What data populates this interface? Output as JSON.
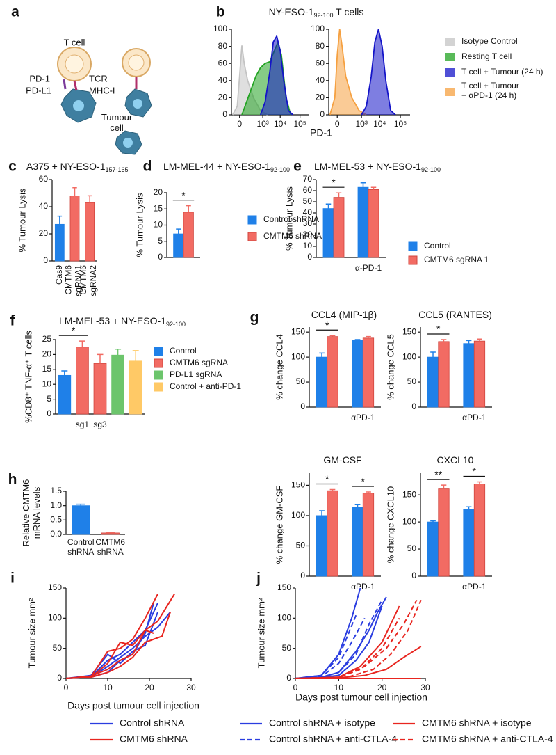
{
  "diagram": {
    "panel_label": "a",
    "labels": [
      "T cell",
      "TCR",
      "MHC-I",
      "PD-1",
      "PD-L1",
      "Tumour\ncell"
    ]
  },
  "chart_data": [
    {
      "type": "density",
      "panel_label": "b",
      "title": "NY-ESO-1",
      "title_sub": "92-100",
      "title_suffix": " T cells",
      "xlabel": "PD-1",
      "xlim": [
        -0.35,
        3.0
      ],
      "xticks": [
        0,
        {
          "value": 1,
          "label": "10³"
        },
        {
          "value": 1.75,
          "label": "10⁴"
        },
        {
          "value": 2.6,
          "label": "10⁵"
        }
      ],
      "ylim": [
        0,
        100
      ],
      "yticks": [
        0,
        20,
        40,
        60,
        80,
        100
      ],
      "series": [
        {
          "name": "Isotype Control",
          "color": "#c4c4c4",
          "x": [
            -0.3,
            -0.1,
            0,
            0.1,
            0.2,
            0.35,
            0.6,
            0.9,
            1.2
          ],
          "values": [
            0,
            10,
            45,
            81,
            60,
            40,
            20,
            5,
            0
          ]
        },
        {
          "name": "Resting T cell",
          "color": "#22a322",
          "x": [
            0.1,
            0.3,
            0.5,
            0.7,
            0.9,
            1.1,
            1.3,
            1.5,
            1.65,
            1.8,
            2.0,
            2.2
          ],
          "values": [
            0,
            15,
            30,
            45,
            55,
            60,
            62,
            75,
            85,
            70,
            20,
            0
          ]
        },
        {
          "name": "T cell + Tumour (24 h)",
          "color": "#1414c8",
          "x": [
            0.9,
            1.1,
            1.3,
            1.45,
            1.6,
            1.75,
            1.9,
            2.1,
            2.3
          ],
          "values": [
            0,
            15,
            50,
            85,
            92,
            75,
            40,
            5,
            0
          ]
        }
      ]
    },
    {
      "type": "density",
      "xlim": [
        -0.35,
        3.0
      ],
      "xticks": [
        0,
        {
          "value": 1,
          "label": "10³"
        },
        {
          "value": 1.75,
          "label": "10⁴"
        },
        {
          "value": 2.6,
          "label": "10⁵"
        }
      ],
      "ylim": [
        0,
        100
      ],
      "yticks": [
        0,
        20,
        40,
        60,
        80,
        100
      ],
      "series": [
        {
          "name": "T cell + Tumour\n+ αPD-1 (24 h)",
          "color": "#f5a040",
          "x": [
            -0.3,
            -0.1,
            0,
            0.1,
            0.2,
            0.35,
            0.6,
            0.9,
            1.2
          ],
          "values": [
            0,
            20,
            70,
            100,
            80,
            45,
            20,
            5,
            0
          ]
        },
        {
          "color": "#1414c8",
          "x": [
            1.0,
            1.2,
            1.4,
            1.55,
            1.7,
            1.85,
            2.0,
            2.2,
            2.4
          ],
          "values": [
            0,
            10,
            45,
            85,
            100,
            80,
            40,
            5,
            0
          ]
        }
      ]
    },
    {
      "type": "bar",
      "panel_label": "c",
      "title": "A375 + NY-ESO-1",
      "title_sub": "157-165",
      "ylabel": "% Tumour Lysis",
      "rotate_labels": true,
      "categories": [
        "Cas9",
        "CMTM6\nsgRNA1",
        "CMTM6\nsgRNA2"
      ],
      "values": [
        27,
        48,
        43
      ],
      "errors": [
        6,
        6,
        5
      ],
      "colors": [
        "#1f80e8",
        "#f26b63",
        "#f26b63"
      ],
      "ylim": [
        0,
        60
      ],
      "yticks": [
        0,
        20,
        40,
        60
      ]
    },
    {
      "type": "bar",
      "panel_label": "d",
      "title": "LM-MEL-44 + NY-ESO-1",
      "title_sub": "92-100",
      "ylabel": "% Tumour Lysis",
      "categories": [
        null
      ],
      "series": [
        {
          "name": "Control shRNA",
          "color": "#1f80e8",
          "values": [
            7.3
          ],
          "errors": [
            1.5
          ]
        },
        {
          "name": "CMTM6 shRNA",
          "color": "#f26b63",
          "values": [
            14
          ],
          "errors": [
            2
          ]
        }
      ],
      "annotations": [
        {
          "text": "*",
          "category": 0
        }
      ],
      "ylim": [
        0,
        20
      ],
      "yticks": [
        0,
        5,
        10,
        15,
        20
      ]
    },
    {
      "type": "bar",
      "panel_label": "e",
      "title": "LM-MEL-53 + NY-ESO-1",
      "title_sub": "92-100",
      "ylabel": "% Tumour Lysis",
      "categories": [
        null,
        "α-PD-1"
      ],
      "series": [
        {
          "name": "Control",
          "color": "#1f80e8",
          "values": [
            44,
            63
          ],
          "errors": [
            4,
            4
          ]
        },
        {
          "name": "CMTM6 sgRNA 1",
          "color": "#f26b63",
          "values": [
            54,
            61
          ],
          "errors": [
            4,
            2
          ]
        }
      ],
      "annotations": [
        {
          "text": "*",
          "category": 0
        }
      ],
      "ylim": [
        0,
        70
      ],
      "yticks": [
        0,
        10,
        20,
        30,
        40,
        50,
        60,
        70
      ]
    },
    {
      "type": "bar",
      "panel_label": "f",
      "title": "LM-MEL-53 + NY-ESO-1",
      "title_sub": "92-100",
      "ylabel": "%CD8⁺ TNF-α⁺ T cells",
      "categories": [
        null,
        "sg1",
        "sg3",
        null,
        null
      ],
      "values": [
        13,
        22.5,
        17,
        19.8,
        17.8
      ],
      "errors": [
        1.5,
        2,
        3,
        2,
        3.5
      ],
      "colors": [
        "#1f80e8",
        "#f26b63",
        "#f26b63",
        "#6cc56c",
        "#ffc966"
      ],
      "legend": [
        {
          "name": "Control",
          "color": "#1f80e8"
        },
        {
          "name": "CMTM6 sgRNA",
          "color": "#f26b63"
        },
        {
          "name": "PD-L1 sgRNA",
          "color": "#6cc56c"
        },
        {
          "name": "Control + anti-PD-1",
          "color": "#ffc966"
        }
      ],
      "annotations": [
        {
          "text": "*",
          "categories": [
            0,
            1
          ]
        }
      ],
      "ylim": [
        0,
        25
      ],
      "yticks": [
        0,
        5,
        10,
        15,
        20,
        25
      ]
    },
    {
      "type": "bar",
      "panel_label": "g",
      "title": "CCL4 (MIP-1β)",
      "ylabel": "% change CCL4",
      "categories": [
        null,
        "αPD-1"
      ],
      "series": [
        {
          "color": "#1f80e8",
          "values": [
            100,
            133
          ],
          "errors": [
            8,
            2
          ]
        },
        {
          "color": "#f26b63",
          "values": [
            141,
            138
          ],
          "errors": [
            2,
            3
          ]
        }
      ],
      "annotations": [
        {
          "text": "*",
          "category": 0
        }
      ],
      "ylim": [
        0,
        160
      ],
      "yticks": [
        0,
        50,
        100,
        150
      ]
    },
    {
      "type": "bar",
      "title": "CCL5 (RANTES)",
      "ylabel": "% change  CCL5",
      "categories": [
        null,
        "αPD-1"
      ],
      "series": [
        {
          "color": "#1f80e8",
          "values": [
            100,
            127
          ],
          "errors": [
            10,
            6
          ]
        },
        {
          "color": "#f26b63",
          "values": [
            131,
            132
          ],
          "errors": [
            4,
            4
          ]
        }
      ],
      "annotations": [
        {
          "text": "*",
          "category": 0
        }
      ],
      "ylim": [
        0,
        160
      ],
      "yticks": [
        0,
        50,
        100,
        150
      ]
    },
    {
      "type": "bar",
      "title": "GM-CSF",
      "ylabel": "% change GM-CSF",
      "categories": [
        null,
        "αPD-1"
      ],
      "series": [
        {
          "color": "#1f80e8",
          "values": [
            100,
            114
          ],
          "errors": [
            8,
            4
          ]
        },
        {
          "color": "#f26b63",
          "values": [
            141,
            137
          ],
          "errors": [
            2,
            2
          ]
        }
      ],
      "annotations": [
        {
          "text": "*",
          "category": 0
        },
        {
          "text": "*",
          "category": 1
        }
      ],
      "ylim": [
        0,
        170
      ],
      "yticks": [
        0,
        50,
        100,
        150
      ]
    },
    {
      "type": "bar",
      "title": "CXCL10",
      "ylabel": "% change CXCL10",
      "categories": [
        null,
        "αPD-1"
      ],
      "series": [
        {
          "color": "#1f80e8",
          "values": [
            100,
            124
          ],
          "errors": [
            2,
            4
          ]
        },
        {
          "color": "#f26b63",
          "values": [
            161,
            170
          ],
          "errors": [
            7,
            4
          ]
        }
      ],
      "annotations": [
        {
          "text": "**",
          "category": 0
        },
        {
          "text": "*",
          "category": 1
        }
      ],
      "ylim": [
        0,
        190
      ],
      "yticks": [
        0,
        50,
        100,
        150
      ]
    },
    {
      "type": "bar",
      "panel_label": "h",
      "ylabel": "Relative CMTM6\nmRNA levels",
      "categories": [
        "Control\nshRNA",
        "CMTM6\nshRNA"
      ],
      "values": [
        1.0,
        0.05
      ],
      "errors": [
        0.05,
        0.02
      ],
      "colors": [
        "#1f80e8",
        "#f26b63"
      ],
      "ylim": [
        0,
        1.5
      ],
      "yticks": [
        {
          "value": 0,
          "label": "0.0"
        },
        {
          "value": 0.5,
          "label": "0.5"
        },
        {
          "value": 1,
          "label": "1.0"
        },
        {
          "value": 1.5,
          "label": "1.5"
        }
      ]
    },
    {
      "type": "lines",
      "panel_label": "i",
      "xlabel": "Days post tumour cell injection",
      "ylabel": "Tumour size mm²",
      "xlim": [
        0,
        30
      ],
      "xticks": [
        0,
        10,
        20,
        30
      ],
      "ylim": [
        0,
        150
      ],
      "yticks": [
        0,
        50,
        100,
        150
      ],
      "series": [
        {
          "name": "Control shRNA",
          "color": "#2a3de0",
          "lines": [
            {
              "x": [
                0,
                6,
                10,
                13,
                16,
                19,
                22
              ],
              "values": [
                0,
                3,
                30,
                40,
                60,
                80,
                125
              ]
            },
            {
              "x": [
                0,
                6,
                10,
                13,
                16,
                19,
                22,
                25
              ],
              "values": [
                0,
                2,
                20,
                35,
                50,
                70,
                85,
                110
              ]
            },
            {
              "x": [
                0,
                6,
                10,
                13,
                16,
                19,
                22
              ],
              "values": [
                0,
                5,
                40,
                25,
                45,
                55,
                110
              ]
            },
            {
              "x": [
                0,
                6,
                10,
                13,
                16,
                19,
                21
              ],
              "values": [
                0,
                2,
                10,
                30,
                40,
                75,
                125
              ]
            }
          ]
        },
        {
          "name": "CMTM6 shRNA",
          "color": "#e8251f",
          "lines": [
            {
              "x": [
                0,
                6,
                10,
                13,
                16,
                19,
                22
              ],
              "values": [
                0,
                3,
                45,
                50,
                65,
                100,
                140
              ]
            },
            {
              "x": [
                0,
                6,
                10,
                13,
                16,
                19,
                22,
                26
              ],
              "values": [
                0,
                2,
                25,
                60,
                55,
                80,
                95,
                140
              ]
            },
            {
              "x": [
                0,
                6,
                10,
                13,
                16,
                19,
                21
              ],
              "values": [
                0,
                4,
                15,
                30,
                40,
                80,
                75
              ]
            },
            {
              "x": [
                0,
                6,
                10,
                13,
                16,
                19,
                23,
                25
              ],
              "values": [
                0,
                2,
                10,
                20,
                35,
                60,
                70,
                110
              ]
            }
          ]
        }
      ]
    },
    {
      "type": "lines",
      "panel_label": "j",
      "xlabel": "Days post tumour cell injection",
      "ylabel": "Tumour size mm²",
      "xlim": [
        0,
        30
      ],
      "xticks": [
        0,
        10,
        20,
        30
      ],
      "ylim": [
        0,
        150
      ],
      "yticks": [
        0,
        50,
        100,
        150
      ],
      "series": [
        {
          "name": "Control shRNA + isotype",
          "color": "#2a3de0",
          "dash": false,
          "lines": [
            {
              "x": [
                0,
                6,
                10,
                13,
                15
              ],
              "values": [
                0,
                5,
                40,
                100,
                150
              ]
            },
            {
              "x": [
                0,
                6,
                10,
                14,
                17,
                19,
                21
              ],
              "values": [
                0,
                2,
                10,
                45,
                80,
                110,
                135
              ]
            },
            {
              "x": [
                0,
                6,
                10,
                14,
                17,
                20
              ],
              "values": [
                0,
                2,
                5,
                30,
                60,
                120
              ]
            }
          ]
        },
        {
          "name": "Control shRNA + anti-CTLA-4",
          "color": "#2a3de0",
          "dash": true,
          "lines": [
            {
              "x": [
                0,
                6,
                10,
                12,
                14
              ],
              "values": [
                0,
                5,
                35,
                70,
                105
              ]
            },
            {
              "x": [
                0,
                6,
                10,
                13,
                16
              ],
              "values": [
                0,
                3,
                25,
                60,
                100
              ]
            },
            {
              "x": [
                0,
                6,
                10,
                14,
                17,
                20
              ],
              "values": [
                0,
                2,
                10,
                40,
                90,
                130
              ]
            }
          ]
        },
        {
          "name": "CMTM6 shRNA + isotype",
          "color": "#e8251f",
          "dash": false,
          "lines": [
            {
              "x": [
                0,
                10,
                15,
                20,
                24
              ],
              "values": [
                0,
                2,
                20,
                60,
                120
              ]
            },
            {
              "x": [
                0,
                10,
                16,
                21,
                25,
                29
              ],
              "values": [
                0,
                1,
                5,
                15,
                35,
                53
              ]
            },
            {
              "x": [
                0,
                15,
                29
              ],
              "values": [
                0,
                0,
                0
              ]
            }
          ]
        },
        {
          "name": "CMTM6 shRNA + anti-CTLA-4",
          "color": "#e8251f",
          "dash": true,
          "lines": [
            {
              "x": [
                0,
                10,
                15,
                20,
                24
              ],
              "values": [
                0,
                2,
                15,
                50,
                100
              ]
            },
            {
              "x": [
                0,
                12,
                18,
                22,
                26,
                29
              ],
              "values": [
                0,
                2,
                15,
                40,
                80,
                130
              ]
            },
            {
              "x": [
                0,
                10,
                16,
                21,
                25,
                28
              ],
              "values": [
                0,
                2,
                20,
                50,
                90,
                130
              ]
            }
          ]
        }
      ]
    }
  ]
}
